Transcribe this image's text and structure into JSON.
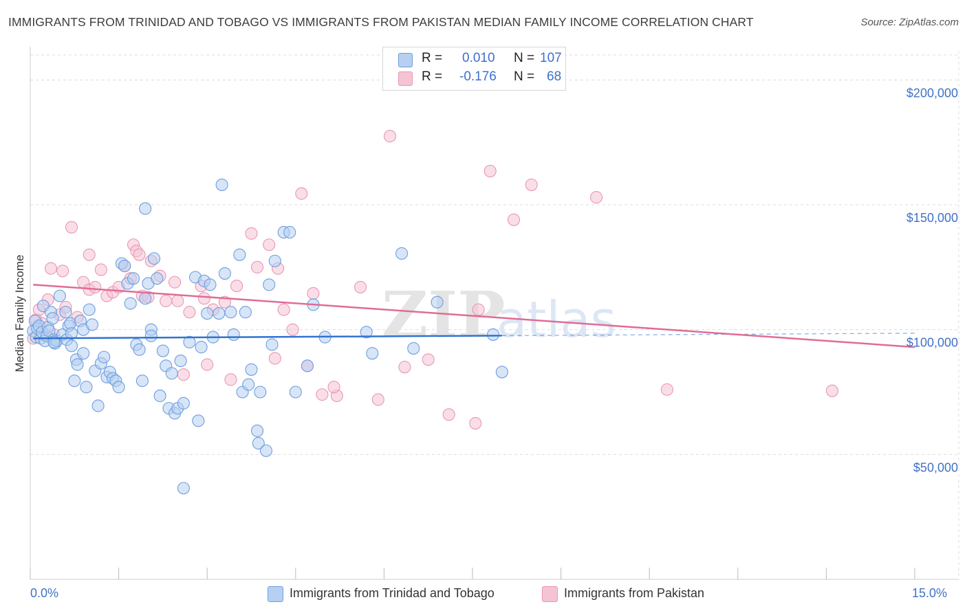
{
  "title": "IMMIGRANTS FROM TRINIDAD AND TOBAGO VS IMMIGRANTS FROM PAKISTAN MEDIAN FAMILY INCOME CORRELATION CHART",
  "source": "Source: ZipAtlas.com",
  "watermark": {
    "zip": "ZIP",
    "atlas": "atlas"
  },
  "legend": {
    "r_label": "R =",
    "n_label": "N =",
    "rows": [
      {
        "r": "0.010",
        "n": "107"
      },
      {
        "r": "-0.176",
        "n": "68"
      }
    ]
  },
  "colors": {
    "blue_fill": "#b7cff1",
    "blue_stroke": "#6d9ee0",
    "blue_line": "#2f73cf",
    "pink_fill": "#f6c3d3",
    "pink_stroke": "#e996b2",
    "pink_line": "#e06c96",
    "tick_text": "#3f72c8",
    "grid": "#dcdcdc"
  },
  "chart_data": {
    "type": "scatter",
    "title": "IMMIGRANTS FROM TRINIDAD AND TOBAGO VS IMMIGRANTS FROM PAKISTAN MEDIAN FAMILY INCOME CORRELATION CHART",
    "xlabel": "",
    "ylabel": "Median Family Income",
    "xlim": [
      0,
      15
    ],
    "ylim": [
      0,
      210000
    ],
    "x_tick_labels": [
      "0.0%",
      "15.0%"
    ],
    "y_ticks": [
      50000,
      100000,
      150000,
      200000
    ],
    "y_tick_labels": [
      "$50,000",
      "$100,000",
      "$150,000",
      "$200,000"
    ],
    "grid": true,
    "legend_position": "top-center",
    "series": [
      {
        "name": "Immigrants from Trinidad and Tobago",
        "r": 0.01,
        "n": 107,
        "trend": {
          "x0": 0.05,
          "y0": 96500,
          "x1": 8.0,
          "y1": 97600,
          "dashed_to_x": 15.0
        },
        "points": [
          [
            0.05,
            99500
          ],
          [
            0.08,
            103500
          ],
          [
            0.1,
            97000
          ],
          [
            0.12,
            100500
          ],
          [
            0.15,
            101500
          ],
          [
            0.18,
            96500
          ],
          [
            0.2,
            99000
          ],
          [
            0.22,
            109500
          ],
          [
            0.25,
            95500
          ],
          [
            0.28,
            97500
          ],
          [
            0.3,
            101000
          ],
          [
            0.32,
            99500
          ],
          [
            0.35,
            107000
          ],
          [
            0.38,
            104500
          ],
          [
            0.4,
            96000
          ],
          [
            0.42,
            94500
          ],
          [
            0.45,
            95500
          ],
          [
            0.5,
            113500
          ],
          [
            0.55,
            98000
          ],
          [
            0.6,
            107000
          ],
          [
            0.62,
            96000
          ],
          [
            0.65,
            101500
          ],
          [
            0.68,
            102500
          ],
          [
            0.7,
            98500
          ],
          [
            0.75,
            79500
          ],
          [
            0.78,
            88000
          ],
          [
            0.8,
            86000
          ],
          [
            0.85,
            103500
          ],
          [
            0.9,
            100000
          ],
          [
            0.9,
            90500
          ],
          [
            0.95,
            77000
          ],
          [
            1.0,
            108000
          ],
          [
            1.05,
            102000
          ],
          [
            1.1,
            83500
          ],
          [
            1.15,
            69500
          ],
          [
            1.2,
            86500
          ],
          [
            1.3,
            81000
          ],
          [
            1.35,
            83000
          ],
          [
            1.4,
            80500
          ],
          [
            1.45,
            79500
          ],
          [
            1.5,
            77000
          ],
          [
            1.55,
            126500
          ],
          [
            1.6,
            125500
          ],
          [
            1.65,
            118500
          ],
          [
            1.7,
            110500
          ],
          [
            1.75,
            120500
          ],
          [
            1.8,
            94000
          ],
          [
            1.85,
            92000
          ],
          [
            1.9,
            79500
          ],
          [
            1.95,
            112500
          ],
          [
            2.0,
            118500
          ],
          [
            2.05,
            100000
          ],
          [
            2.1,
            128500
          ],
          [
            2.15,
            120500
          ],
          [
            2.2,
            73500
          ],
          [
            2.25,
            91500
          ],
          [
            2.3,
            85500
          ],
          [
            2.35,
            68500
          ],
          [
            2.4,
            82500
          ],
          [
            2.45,
            66500
          ],
          [
            2.5,
            68500
          ],
          [
            2.55,
            87500
          ],
          [
            2.6,
            70500
          ],
          [
            2.6,
            36500
          ],
          [
            2.7,
            95000
          ],
          [
            2.8,
            121000
          ],
          [
            2.85,
            63500
          ],
          [
            2.9,
            93000
          ],
          [
            2.95,
            119500
          ],
          [
            3.0,
            106500
          ],
          [
            3.05,
            118000
          ],
          [
            3.1,
            97000
          ],
          [
            3.2,
            106500
          ],
          [
            3.25,
            158000
          ],
          [
            3.3,
            122500
          ],
          [
            3.4,
            107000
          ],
          [
            3.45,
            98000
          ],
          [
            3.55,
            130000
          ],
          [
            3.6,
            75000
          ],
          [
            3.65,
            107000
          ],
          [
            3.7,
            78000
          ],
          [
            3.75,
            84000
          ],
          [
            3.85,
            59500
          ],
          [
            3.87,
            54500
          ],
          [
            3.9,
            75000
          ],
          [
            4.0,
            51500
          ],
          [
            4.05,
            118000
          ],
          [
            4.1,
            94000
          ],
          [
            4.15,
            127500
          ],
          [
            4.3,
            139000
          ],
          [
            4.4,
            139000
          ],
          [
            4.5,
            75000
          ],
          [
            4.7,
            85500
          ],
          [
            4.8,
            110000
          ],
          [
            5.0,
            97000
          ],
          [
            5.7,
            99000
          ],
          [
            5.8,
            90500
          ],
          [
            6.3,
            130500
          ],
          [
            6.5,
            92500
          ],
          [
            6.9,
            111000
          ],
          [
            1.95,
            148500
          ],
          [
            2.05,
            97500
          ],
          [
            0.7,
            93500
          ],
          [
            0.4,
            95000
          ],
          [
            7.85,
            98000
          ],
          [
            8.0,
            83000
          ],
          [
            1.25,
            89000
          ]
        ]
      },
      {
        "name": "Immigrants from Pakistan",
        "r": -0.176,
        "n": 68,
        "trend": {
          "x0": 0.05,
          "y0": 118000,
          "x1": 15.0,
          "y1": 93000
        },
        "points": [
          [
            0.05,
            96500
          ],
          [
            0.1,
            104000
          ],
          [
            0.15,
            108000
          ],
          [
            0.2,
            102500
          ],
          [
            0.3,
            112000
          ],
          [
            0.35,
            124500
          ],
          [
            0.4,
            98000
          ],
          [
            0.5,
            106000
          ],
          [
            0.55,
            123500
          ],
          [
            0.6,
            109000
          ],
          [
            0.7,
            141000
          ],
          [
            0.8,
            105000
          ],
          [
            0.9,
            119000
          ],
          [
            1.0,
            116000
          ],
          [
            1.0,
            130000
          ],
          [
            1.1,
            117000
          ],
          [
            1.2,
            124000
          ],
          [
            1.3,
            113500
          ],
          [
            1.4,
            115000
          ],
          [
            1.5,
            117000
          ],
          [
            1.6,
            125500
          ],
          [
            1.7,
            120500
          ],
          [
            1.75,
            134000
          ],
          [
            1.8,
            131500
          ],
          [
            1.85,
            130000
          ],
          [
            1.9,
            113500
          ],
          [
            2.0,
            113000
          ],
          [
            2.05,
            127500
          ],
          [
            2.2,
            121500
          ],
          [
            2.3,
            111500
          ],
          [
            2.45,
            119000
          ],
          [
            2.5,
            111500
          ],
          [
            2.6,
            82000
          ],
          [
            2.7,
            107000
          ],
          [
            2.9,
            117500
          ],
          [
            2.95,
            112500
          ],
          [
            3.0,
            86000
          ],
          [
            3.1,
            108000
          ],
          [
            3.3,
            111000
          ],
          [
            3.4,
            80000
          ],
          [
            3.5,
            117500
          ],
          [
            3.75,
            138500
          ],
          [
            3.85,
            125000
          ],
          [
            4.05,
            134000
          ],
          [
            4.15,
            88500
          ],
          [
            4.2,
            124500
          ],
          [
            4.3,
            108000
          ],
          [
            4.45,
            100000
          ],
          [
            4.6,
            154500
          ],
          [
            4.7,
            85500
          ],
          [
            4.8,
            114500
          ],
          [
            4.95,
            74000
          ],
          [
            5.2,
            73500
          ],
          [
            5.6,
            117000
          ],
          [
            5.9,
            72000
          ],
          [
            6.1,
            177500
          ],
          [
            6.35,
            85000
          ],
          [
            6.75,
            88000
          ],
          [
            7.1,
            66000
          ],
          [
            7.55,
            62500
          ],
          [
            7.6,
            108000
          ],
          [
            7.8,
            163500
          ],
          [
            8.2,
            144000
          ],
          [
            8.5,
            158000
          ],
          [
            9.6,
            153000
          ],
          [
            10.8,
            76000
          ],
          [
            13.6,
            75500
          ],
          [
            5.15,
            77000
          ]
        ]
      }
    ]
  },
  "x_axis": {
    "min_label": "0.0%",
    "max_label": "15.0%"
  },
  "bottom_legend": [
    {
      "label": "Immigrants from Trinidad and Tobago"
    },
    {
      "label": "Immigrants from Pakistan"
    }
  ]
}
